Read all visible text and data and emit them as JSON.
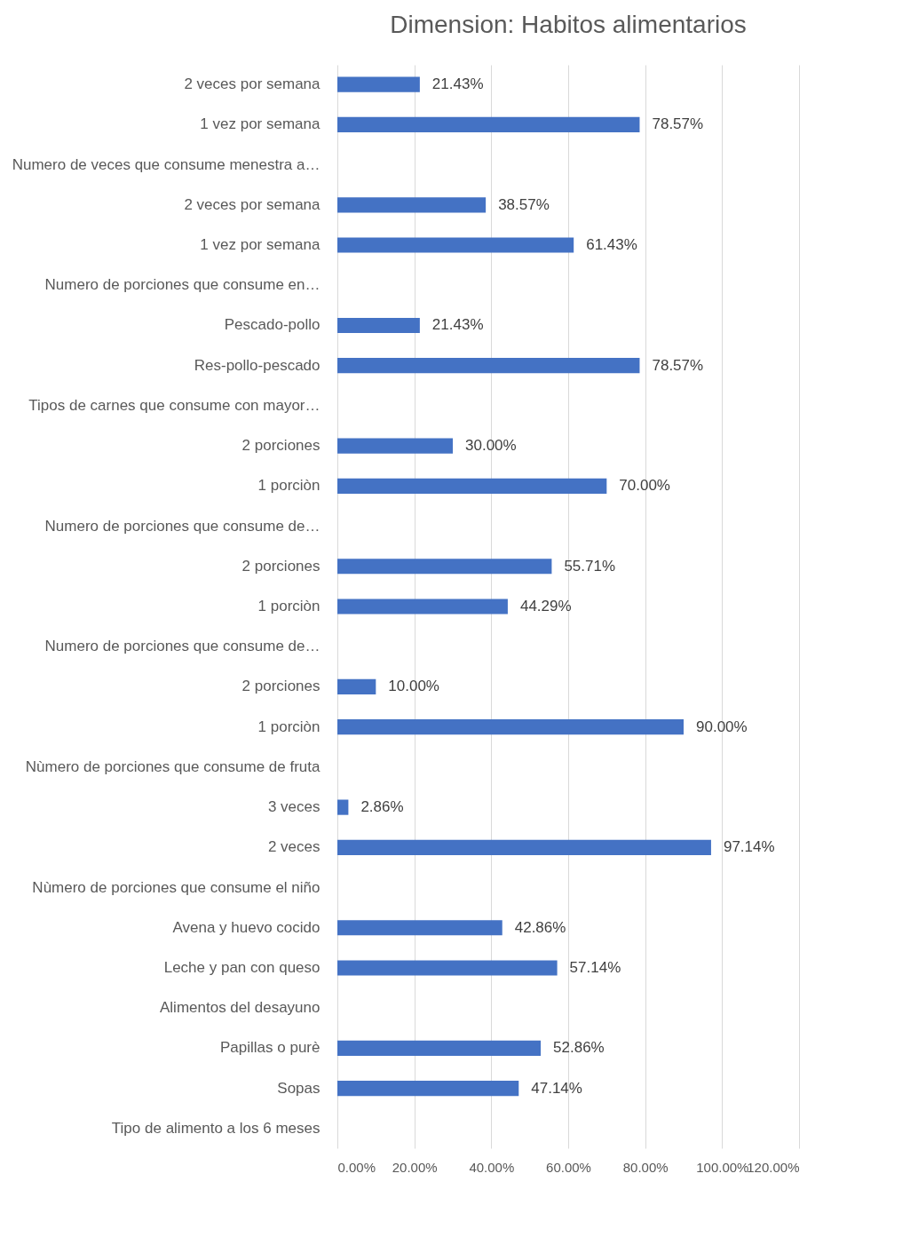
{
  "chart_data": {
    "type": "bar",
    "orientation": "horizontal",
    "title": "Dimension: Habitos alimentarios",
    "categories": [
      "2 veces por semana",
      "1 vez por semana",
      "Numero de veces que consume menestra a…",
      "2 veces por semana",
      "1 vez por semana",
      "Numero de porciones que consume en…",
      "Pescado-pollo",
      "Res-pollo-pescado",
      "Tipos de carnes que consume con mayor…",
      "2 porciones",
      "1 porciòn",
      "Numero de porciones que consume de…",
      "2 porciones",
      "1 porciòn",
      "Numero de porciones que consume de…",
      "2 porciones",
      "1 porciòn",
      "Nùmero de porciones que consume de fruta",
      "3 veces",
      "2 veces",
      "Nùmero de porciones que consume el niño",
      "Avena y huevo cocido",
      "Leche y pan con queso",
      "Alimentos del desayuno",
      "Papillas o purè",
      "Sopas",
      "Tipo de alimento a los 6 meses"
    ],
    "values": [
      21.43,
      78.57,
      null,
      38.57,
      61.43,
      null,
      21.43,
      78.57,
      null,
      30.0,
      70.0,
      null,
      55.71,
      44.29,
      null,
      10.0,
      90.0,
      null,
      2.86,
      97.14,
      null,
      42.86,
      57.14,
      null,
      52.86,
      47.14,
      null
    ],
    "value_labels": [
      "21.43%",
      "78.57%",
      null,
      "38.57%",
      "61.43%",
      null,
      "21.43%",
      "78.57%",
      null,
      "30.00%",
      "70.00%",
      null,
      "55.71%",
      "44.29%",
      null,
      "10.00%",
      "90.00%",
      null,
      "2.86%",
      "97.14%",
      null,
      "42.86%",
      "57.14%",
      null,
      "52.86%",
      "47.14%",
      null
    ],
    "color": "#4472c4",
    "xlim": [
      0,
      120
    ],
    "xticks": [
      {
        "value": 0,
        "label": "0.00%"
      },
      {
        "value": 20,
        "label": "20.00%"
      },
      {
        "value": 40,
        "label": "40.00%"
      },
      {
        "value": 60,
        "label": "60.00%"
      },
      {
        "value": 80,
        "label": "80.00%"
      },
      {
        "value": 100,
        "label": "100.00%"
      },
      {
        "value": 120,
        "label": "120.00%"
      }
    ],
    "grid": "x"
  }
}
